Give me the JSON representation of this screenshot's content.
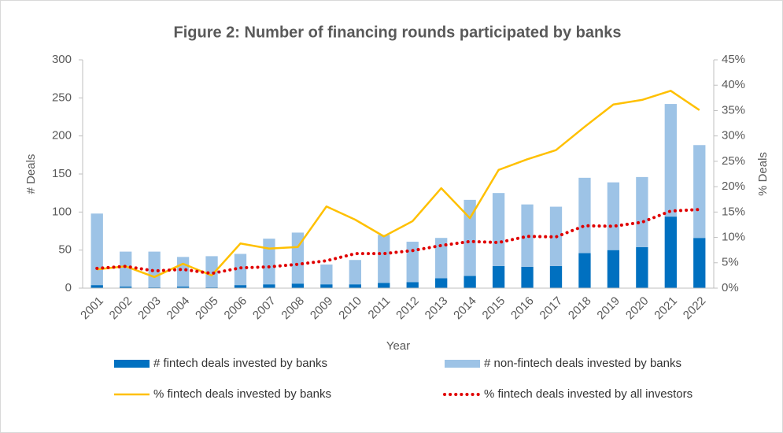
{
  "chart_data": {
    "type": "bar",
    "title": "Figure 2: Number of financing rounds participated by banks",
    "x_label": "Year",
    "y_label": "# Deals",
    "y2_label": "% Deals",
    "categories": [
      "2001",
      "2002",
      "2003",
      "2004",
      "2005",
      "2006",
      "2007",
      "2008",
      "2009",
      "2010",
      "2011",
      "2012",
      "2013",
      "2014",
      "2015",
      "2016",
      "2017",
      "2018",
      "2019",
      "2020",
      "2021",
      "2022"
    ],
    "series": [
      {
        "name": "# fintech deals invested by banks",
        "color": "#0070c0",
        "kind": "bar",
        "values": [
          4,
          2,
          1,
          2,
          1,
          4,
          5,
          6,
          5,
          5,
          7,
          8,
          13,
          16,
          29,
          28,
          29,
          46,
          50,
          54,
          94,
          66
        ]
      },
      {
        "name": "# non-fintech deals invested by banks",
        "color": "#9dc3e6",
        "kind": "bar",
        "values": [
          94,
          46,
          47,
          39,
          41,
          41,
          60,
          67,
          26,
          32,
          63,
          53,
          53,
          100,
          96,
          82,
          78,
          99,
          89,
          92,
          148,
          122
        ]
      },
      {
        "name": "% fintech deals invested by banks",
        "color": "#ffc000",
        "kind": "line",
        "axis": "y2",
        "values": [
          3.7,
          4.3,
          2.2,
          4.8,
          2.5,
          8.8,
          7.8,
          8.1,
          16.1,
          13.5,
          10.2,
          13.2,
          19.7,
          13.8,
          23.3,
          25.4,
          27.2,
          31.8,
          36.2,
          37.1,
          38.9,
          35.1
        ]
      },
      {
        "name": "% fintech deals invested by all investors",
        "color": "#e00000",
        "kind": "dotted",
        "axis": "y2",
        "values": [
          3.9,
          4.3,
          3.4,
          3.7,
          2.9,
          4.0,
          4.2,
          4.7,
          5.4,
          6.8,
          6.8,
          7.4,
          8.4,
          9.2,
          9.0,
          10.2,
          10.1,
          12.3,
          12.2,
          13.0,
          15.2,
          15.5
        ]
      }
    ],
    "ylim": [
      0,
      300
    ],
    "yticks": [
      0,
      50,
      100,
      150,
      200,
      250,
      300
    ],
    "y2lim": [
      0,
      45
    ],
    "y2ticks": [
      {
        "value": 0,
        "label": "0%"
      },
      {
        "value": 5,
        "label": "5%"
      },
      {
        "value": 10,
        "label": "10%"
      },
      {
        "value": 15,
        "label": "15%"
      },
      {
        "value": 20,
        "label": "20%"
      },
      {
        "value": 25,
        "label": "25%"
      },
      {
        "value": 30,
        "label": "30%"
      },
      {
        "value": 35,
        "label": "35%"
      },
      {
        "value": 40,
        "label": "40%"
      },
      {
        "value": 45,
        "label": "45%"
      }
    ]
  }
}
